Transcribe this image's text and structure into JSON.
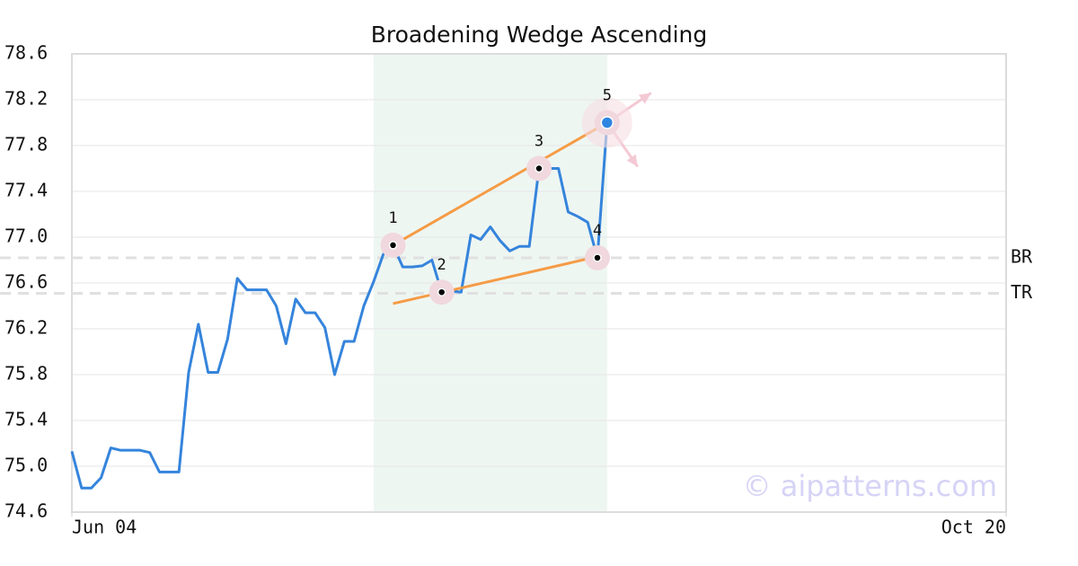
{
  "chart_data": {
    "type": "line",
    "title": "Broadening Wedge Ascending",
    "watermark": "© aipatterns.com",
    "x": [
      0,
      1,
      2,
      3,
      4,
      5,
      6,
      7,
      8,
      9,
      10,
      11,
      12,
      13,
      14,
      15,
      16,
      17,
      18,
      19,
      20,
      21,
      22,
      23,
      24,
      25,
      26,
      27,
      28,
      29,
      30,
      31,
      32,
      33,
      34,
      35,
      36,
      37,
      38,
      39,
      40,
      41,
      42,
      43,
      44,
      45,
      46,
      47,
      48,
      49,
      50,
      51,
      52,
      53,
      54,
      55
    ],
    "series": [
      {
        "color": "#3584dc",
        "values": [
          75.13,
          74.81,
          74.81,
          74.9,
          75.16,
          75.14,
          75.14,
          75.14,
          75.12,
          74.95,
          74.95,
          74.95,
          75.82,
          76.24,
          75.82,
          75.82,
          76.11,
          76.64,
          76.54,
          76.54,
          76.54,
          76.4,
          76.07,
          76.46,
          76.34,
          76.34,
          76.21,
          75.8,
          76.09,
          76.09,
          76.4,
          76.61,
          76.85,
          76.93,
          76.74,
          76.74,
          76.75,
          76.8,
          76.52,
          76.53,
          76.52,
          77.02,
          76.98,
          77.09,
          76.97,
          76.88,
          76.92,
          76.92,
          77.6,
          77.6,
          77.6,
          77.22,
          77.18,
          77.13,
          76.82,
          78.0
        ]
      }
    ],
    "xlim": [
      0,
      96
    ],
    "xticks": [
      {
        "value": 0,
        "label": "Jun 04"
      },
      {
        "value": 96,
        "label": "Oct 20"
      }
    ],
    "ylim": [
      74.6,
      78.6
    ],
    "yticks": [
      78.6,
      78.2,
      77.8,
      77.4,
      {
        "value": 77,
        "label": "77.0"
      },
      76.6,
      76.2,
      75.8,
      75.4,
      {
        "value": 75,
        "label": "75.0"
      },
      74.6
    ],
    "grid": true,
    "highlight": {
      "xrange": [
        31,
        55
      ],
      "color": "#eef6f2"
    },
    "trend_color": "#f59b45",
    "trend_lines": [
      {
        "x": [
          33,
          55
        ],
        "y": [
          76.93,
          78.0
        ]
      },
      {
        "x": [
          33,
          55
        ],
        "y": [
          76.42,
          76.85
        ]
      }
    ],
    "levels": [
      {
        "label": "BR",
        "value": 76.82
      },
      {
        "label": "TR",
        "value": 76.51
      }
    ],
    "points": [
      {
        "label": "1",
        "x": 33,
        "y": 76.93
      },
      {
        "label": "2",
        "x": 38,
        "y": 76.52
      },
      {
        "label": "3",
        "x": 48,
        "y": 77.6
      },
      {
        "label": "4",
        "x": 54,
        "y": 76.82
      },
      {
        "label": "5",
        "x": 55,
        "y": 78.0
      }
    ]
  }
}
